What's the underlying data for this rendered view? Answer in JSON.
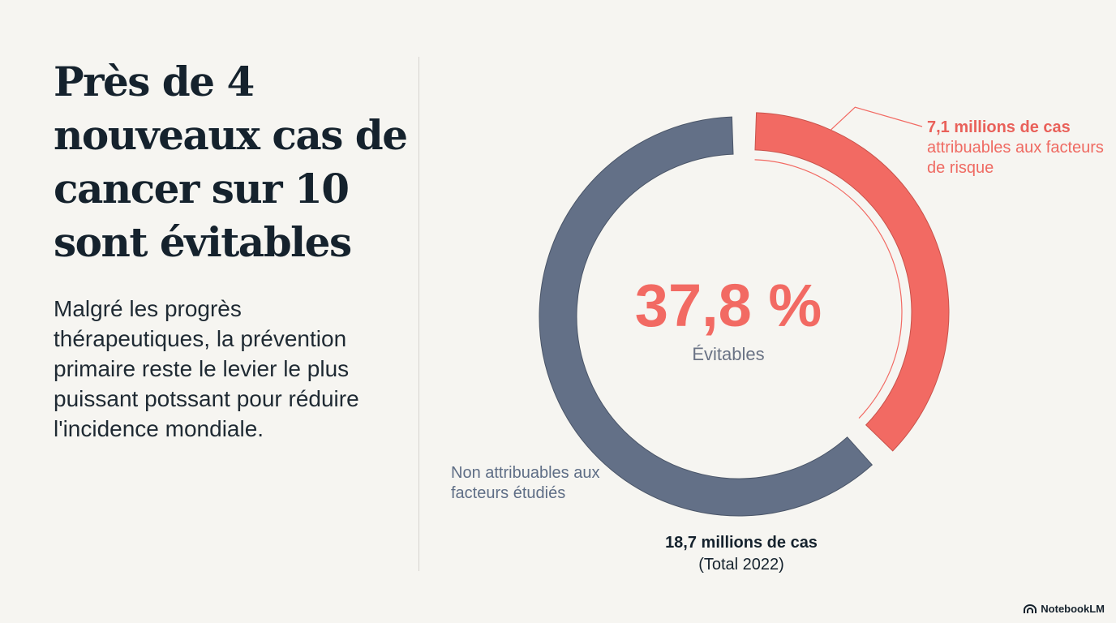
{
  "headline": "Près de 4 nouveaux cas de cancer sur 10 sont évitables",
  "body_text": "Malgré les progrès thérapeutiques, la prévention primaire reste le levier le plus puissant potssant pour réduire l'incidence mondiale.",
  "brand": {
    "name": "NotebookLM",
    "icon": "notebooklm-logo-icon"
  },
  "chart_data": {
    "type": "pie",
    "variant": "donut",
    "center": {
      "value": "37,8 %",
      "label": "Évitables"
    },
    "slices": [
      {
        "label_value": "7,1 millions de cas",
        "label": "attribuables aux facteurs de risque",
        "value": 7.1,
        "percent": 37.8,
        "color": "#f26a63",
        "exploded": true
      },
      {
        "label": "Non attribuables aux facteurs étudiés",
        "value": 11.6,
        "percent": 62.2,
        "color": "#637087",
        "exploded": false
      }
    ],
    "total": {
      "value": "18,7 millions de cas",
      "note": "(Total 2022)"
    },
    "colors": {
      "highlight": "#f26a63",
      "other": "#637087",
      "text_dark": "#15222d"
    }
  }
}
